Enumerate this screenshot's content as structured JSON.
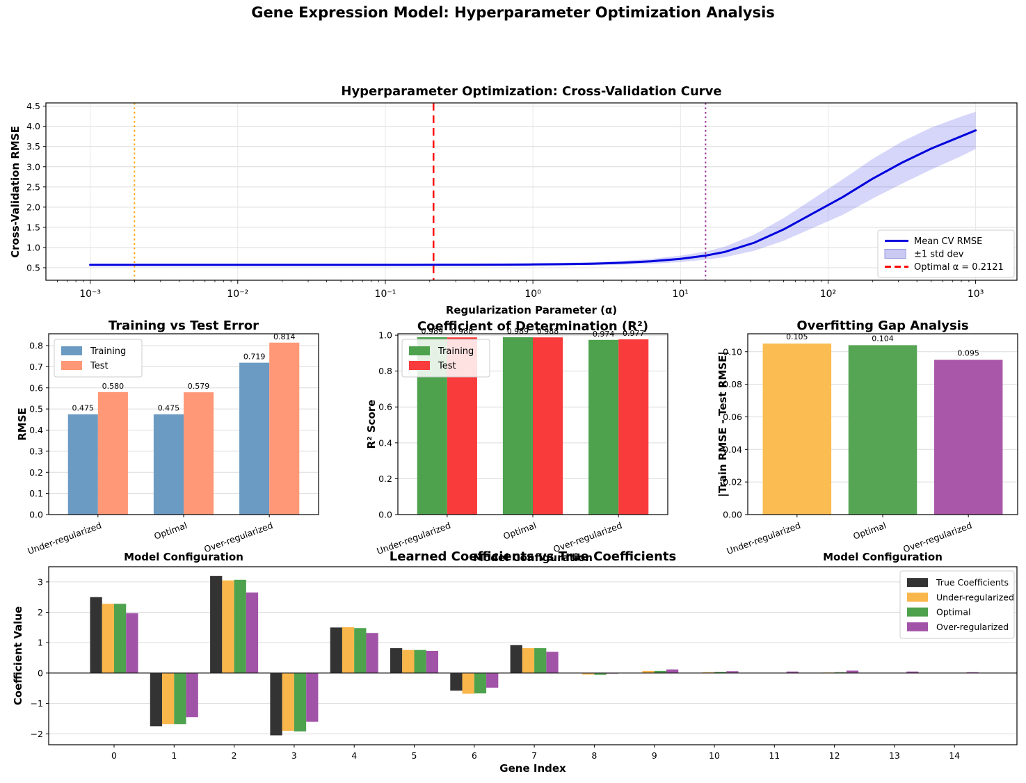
{
  "figure": {
    "title": "Gene Expression Model: Hyperparameter Optimization Analysis"
  },
  "chart_data": [
    {
      "id": "cv",
      "type": "line",
      "title": "Hyperparameter Optimization: Cross-Validation Curve",
      "xlabel": "Regularization Parameter (α)",
      "ylabel": "Cross-Validation RMSE",
      "xscale": "log",
      "xlim_log": [
        -3.3,
        3.28
      ],
      "ylim": [
        0.19,
        4.58
      ],
      "yticks": [
        0.5,
        1.0,
        1.5,
        2.0,
        2.5,
        3.0,
        3.5,
        4.0,
        4.5
      ],
      "ytick_labels": [
        "0.5",
        "1.0",
        "1.5",
        "2.0",
        "2.5",
        "3.0",
        "3.5",
        "4.0",
        "4.5"
      ],
      "xticks_log": [
        -3,
        -2,
        -1,
        0,
        1,
        2,
        3
      ],
      "xtick_labels": [
        "10⁻³",
        "10⁻²",
        "10⁻¹",
        "10⁰",
        "10¹",
        "10²",
        "10³"
      ],
      "line_color": "#0000dd",
      "band_color": "rgba(70,70,230,0.22)",
      "grid": true,
      "x_log": [
        -3,
        -2.8,
        -2.6,
        -2.4,
        -2.2,
        -2,
        -1.8,
        -1.6,
        -1.4,
        -1.2,
        -1,
        -0.8,
        -0.6,
        -0.4,
        -0.2,
        0,
        0.2,
        0.4,
        0.6,
        0.8,
        1,
        1.17,
        1.3,
        1.5,
        1.7,
        1.9,
        2.1,
        2.3,
        2.5,
        2.7,
        2.9,
        3
      ],
      "rmse": [
        0.57,
        0.57,
        0.57,
        0.57,
        0.57,
        0.57,
        0.57,
        0.57,
        0.57,
        0.57,
        0.571,
        0.571,
        0.572,
        0.574,
        0.576,
        0.58,
        0.588,
        0.6,
        0.622,
        0.66,
        0.72,
        0.8,
        0.89,
        1.12,
        1.45,
        1.85,
        2.25,
        2.7,
        3.1,
        3.45,
        3.75,
        3.9
      ],
      "std": [
        0.025,
        0.025,
        0.025,
        0.025,
        0.025,
        0.025,
        0.025,
        0.025,
        0.025,
        0.025,
        0.025,
        0.025,
        0.026,
        0.027,
        0.028,
        0.03,
        0.033,
        0.038,
        0.046,
        0.06,
        0.08,
        0.1,
        0.13,
        0.2,
        0.28,
        0.36,
        0.44,
        0.49,
        0.52,
        0.52,
        0.49,
        0.46
      ],
      "vlines": [
        {
          "name": "under-regularized-alpha-line",
          "x_log": -2.7,
          "alpha": 0.002,
          "color": "#ffa500",
          "style": "dotted"
        },
        {
          "name": "optimal-alpha-line",
          "x_log": -0.6735,
          "alpha": 0.2121,
          "color": "#ff0000",
          "style": "dashed"
        },
        {
          "name": "over-regularized-alpha-line",
          "x_log": 1.17,
          "alpha": 14.8,
          "color": "#993399",
          "style": "dotted"
        }
      ],
      "legend": [
        {
          "label": "Mean CV RMSE",
          "type": "line",
          "color": "#0000dd"
        },
        {
          "label": "±1 std dev",
          "type": "patch",
          "color": "#c9c9f2"
        },
        {
          "label": "Optimal α = 0.2121",
          "type": "dash",
          "color": "#ff0000"
        }
      ]
    },
    {
      "id": "err",
      "type": "bar",
      "title": "Training vs Test Error",
      "xlabel": "Model Configuration",
      "ylabel": "RMSE",
      "categories": [
        "Under-regularized",
        "Optimal",
        "Over-regularized"
      ],
      "series": [
        {
          "name": "Training",
          "color": "#6b9bc3",
          "values": [
            0.475,
            0.475,
            0.719
          ],
          "labels": [
            "0.475",
            "0.475",
            "0.719"
          ]
        },
        {
          "name": "Test",
          "color": "#ff9877",
          "values": [
            0.58,
            0.579,
            0.814
          ],
          "labels": [
            "0.580",
            "0.579",
            "0.814"
          ]
        }
      ],
      "ylim": [
        0,
        0.856
      ],
      "yticks": [
        0,
        0.1,
        0.2,
        0.3,
        0.4,
        0.5,
        0.6,
        0.7,
        0.8
      ],
      "ytick_labels": [
        "0.0",
        "0.1",
        "0.2",
        "0.3",
        "0.4",
        "0.5",
        "0.6",
        "0.7",
        "0.8"
      ],
      "legend_pos": "top-left",
      "legend_alpha": 1
    },
    {
      "id": "r2",
      "type": "bar",
      "title": "Coefficient of Determination (R²)",
      "xlabel": "Model Configuration",
      "ylabel": "R² Score",
      "categories": [
        "Under-regularized",
        "Optimal",
        "Over-regularized"
      ],
      "series": [
        {
          "name": "Training",
          "color": "#4ea24e",
          "values": [
            0.989,
            0.989,
            0.974
          ],
          "labels": [
            "0.989",
            "0.989",
            "0.974"
          ]
        },
        {
          "name": "Test",
          "color": "#f93b3b",
          "values": [
            0.988,
            0.988,
            0.977
          ],
          "labels": [
            "0.988",
            "0.988",
            "0.977"
          ]
        }
      ],
      "ylim": [
        0,
        1.008
      ],
      "yticks": [
        0,
        0.2,
        0.4,
        0.6,
        0.8,
        1.0
      ],
      "ytick_labels": [
        "0.0",
        "0.2",
        "0.4",
        "0.6",
        "0.8",
        "1.0"
      ],
      "legend_pos": "top-left",
      "legend_alpha": 0.85
    },
    {
      "id": "gap",
      "type": "bar_single",
      "title": "Overfitting Gap Analysis",
      "xlabel": "Model Configuration",
      "ylabel": "|Train RMSE - Test RMSE|",
      "categories": [
        "Under-regularized",
        "Optimal",
        "Over-regularized"
      ],
      "values": [
        0.105,
        0.104,
        0.095
      ],
      "labels": [
        "0.105",
        "0.104",
        "0.095"
      ],
      "colors": [
        "#fbbc51",
        "#55a555",
        "#a958a9"
      ],
      "ylim": [
        0,
        0.111
      ],
      "yticks": [
        0,
        0.02,
        0.04,
        0.06,
        0.08,
        0.1
      ],
      "ytick_labels": [
        "0.00",
        "0.02",
        "0.04",
        "0.06",
        "0.08",
        "0.10"
      ]
    },
    {
      "id": "coef",
      "type": "grouped_bar",
      "title": "Learned Coefficients vs True Coefficients",
      "xlabel": "Gene Index",
      "ylabel": "Coefficient Value",
      "categories": [
        "0",
        "1",
        "2",
        "3",
        "4",
        "5",
        "6",
        "7",
        "8",
        "9",
        "10",
        "11",
        "12",
        "13",
        "14"
      ],
      "series": [
        {
          "name": "True Coefficients",
          "color": "#333333",
          "values": [
            2.5,
            -1.75,
            3.2,
            -2.05,
            1.5,
            0.82,
            -0.58,
            0.92,
            0,
            0,
            0,
            0,
            0,
            0,
            0
          ]
        },
        {
          "name": "Under-regularized",
          "color": "#f9b64a",
          "values": [
            2.28,
            -1.68,
            3.05,
            -1.9,
            1.51,
            0.76,
            -0.68,
            0.82,
            -0.05,
            0.07,
            0.03,
            0,
            0.02,
            0,
            0
          ]
        },
        {
          "name": "Optimal",
          "color": "#4ea24e",
          "values": [
            2.28,
            -1.68,
            3.07,
            -1.92,
            1.48,
            0.76,
            -0.67,
            0.82,
            -0.06,
            0.07,
            0.04,
            0,
            0.03,
            0,
            0
          ]
        },
        {
          "name": "Over-regularized",
          "color": "#a153a8",
          "values": [
            1.97,
            -1.45,
            2.65,
            -1.6,
            1.32,
            0.73,
            -0.48,
            0.7,
            -0.02,
            0.12,
            0.06,
            0.05,
            0.08,
            0.05,
            0.03
          ]
        }
      ],
      "ylim": [
        -2.36,
        3.5
      ],
      "yticks": [
        -2,
        -1,
        0,
        1,
        2,
        3
      ],
      "ytick_labels": [
        "−2",
        "−1",
        "0",
        "1",
        "2",
        "3"
      ],
      "legend_pos": "top-right"
    }
  ]
}
